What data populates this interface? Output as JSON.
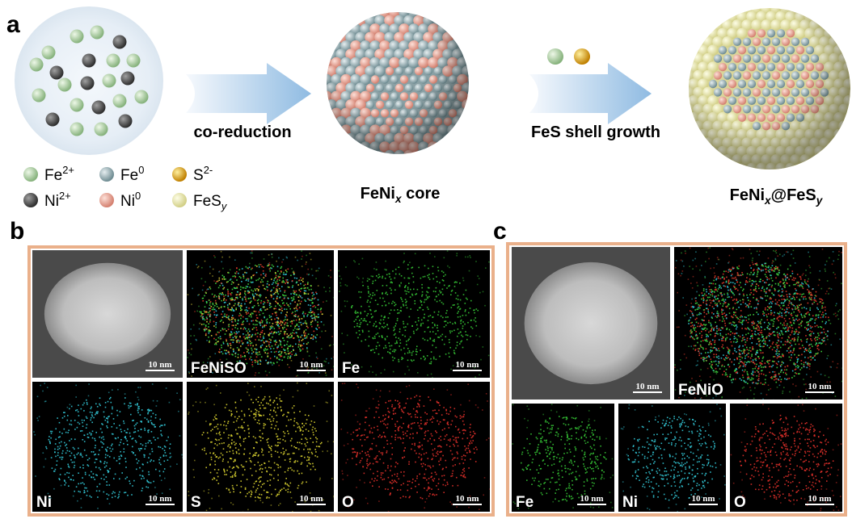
{
  "panel_labels": [
    "a",
    "b",
    "c"
  ],
  "schematic": {
    "steps": [
      "co-reduction",
      "FeS shell growth"
    ],
    "legend": [
      [
        {
          "text": "Fe"
        },
        {
          "text": "2+",
          "style": "sup"
        }
      ],
      [
        {
          "text": "Fe"
        },
        {
          "text": "0",
          "style": "sup"
        }
      ],
      [
        {
          "text": "S"
        },
        {
          "text": "2-",
          "style": "sup"
        }
      ],
      [
        {
          "text": "Ni"
        },
        {
          "text": "2+",
          "style": "sup"
        }
      ],
      [
        {
          "text": "Ni"
        },
        {
          "text": "0",
          "style": "sup"
        }
      ],
      [
        {
          "text": "FeS"
        },
        {
          "text": "y",
          "style": "sub"
        }
      ]
    ],
    "core_label": [
      {
        "text": "FeNi"
      },
      {
        "text": "x",
        "style": "sub"
      },
      {
        "text": " core"
      }
    ],
    "product_label": [
      {
        "text": "FeNi"
      },
      {
        "text": "x",
        "style": "sub"
      },
      {
        "text": "@FeS"
      },
      {
        "text": "y",
        "style": "sub"
      }
    ]
  },
  "panel_b": {
    "maps": [
      {
        "scale_bar": "10 nm"
      },
      {
        "label": "FeNiSO",
        "scale_bar": "10 nm"
      },
      {
        "label": "Fe",
        "scale_bar": "10 nm"
      },
      {
        "label": "Ni",
        "scale_bar": "10 nm"
      },
      {
        "label": "S",
        "scale_bar": "10 nm"
      },
      {
        "label": "O",
        "scale_bar": "10 nm"
      }
    ]
  },
  "panel_c": {
    "maps": [
      {
        "scale_bar": "10 nm"
      },
      {
        "label": "FeNiO",
        "scale_bar": "10 nm"
      },
      {
        "label": "Fe",
        "scale_bar": "10 nm"
      },
      {
        "label": "Ni",
        "scale_bar": "10 nm"
      },
      {
        "label": "O",
        "scale_bar": "10 nm"
      }
    ]
  }
}
